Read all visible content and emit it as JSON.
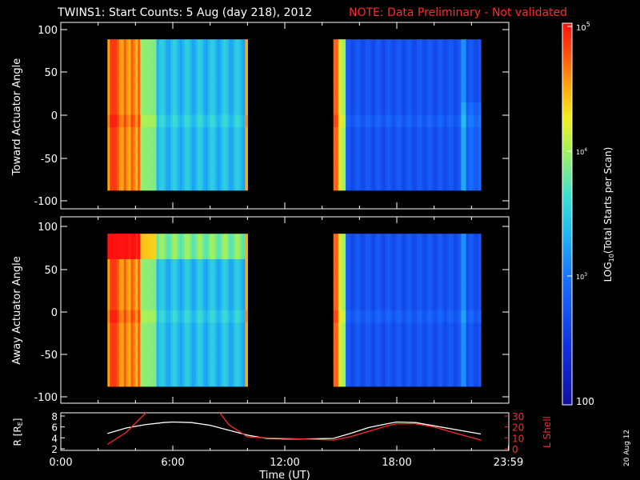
{
  "title": {
    "main": "TWINS1: Start Counts:  5 Aug (day 218), 2012",
    "note": "NOTE: Data Preliminary - Not validated"
  },
  "colorbar": {
    "label_prefix": "LOG",
    "label_sub": "10",
    "label_suffix": "(Total Starts per Scan)",
    "tick_top": "10",
    "tick_top_exp": "5",
    "tick_mid": "10",
    "tick_mid_exp": "4",
    "tick_low": "10",
    "tick_low_exp": "3",
    "tick_bottom": "100",
    "range": [
      100,
      100000
    ],
    "scale": "log"
  },
  "date_stamp": "20 Aug 12",
  "colors": {
    "background": "#000000",
    "note": "#ff2a2a",
    "lshell": "#ff2a2a",
    "radius": "#ffffff"
  },
  "chart_data": [
    {
      "type": "heatmap",
      "ylabel": "Toward Actuator Angle",
      "ylim": [
        -110,
        110
      ],
      "yticks": [
        "100",
        "50",
        "0",
        "-50",
        "-100"
      ],
      "xlim": [
        0,
        24
      ],
      "grid": false,
      "blocks": [
        {
          "t_start": 2.5,
          "t_end": 10.0,
          "angle_range": [
            -88,
            90
          ],
          "description_levels": [
            "high at 2.5-4.5h (~5e4)",
            "moderate ~3e3 later"
          ]
        },
        {
          "t_start": 14.6,
          "t_end": 22.5,
          "angle_range": [
            -88,
            90
          ],
          "description_levels": [
            "high at 14.6-15.2h (~5e4)",
            "low ~500 later"
          ]
        }
      ]
    },
    {
      "type": "heatmap",
      "ylabel": "Away Actuator Angle",
      "ylim": [
        -110,
        110
      ],
      "yticks": [
        "100",
        "50",
        "0",
        "-50",
        "-100"
      ],
      "xlim": [
        0,
        24
      ],
      "grid": false,
      "blocks": [
        {
          "t_start": 2.5,
          "t_end": 10.0,
          "angle_range": [
            -90,
            90
          ]
        },
        {
          "t_start": 14.6,
          "t_end": 22.5,
          "angle_range": [
            -90,
            90
          ]
        }
      ]
    },
    {
      "type": "line",
      "ylabel_left": "R [R",
      "ylabel_left_sub": "E",
      "ylabel_left_end": "]",
      "ylabel_right": "L Shell",
      "yticks_left": [
        "8",
        "6",
        "4",
        "2"
      ],
      "yticks_right": [
        "30",
        "20",
        "10",
        "0"
      ],
      "ylim_left": [
        2,
        8
      ],
      "ylim_right": [
        0,
        30
      ],
      "xlabel": "Time (UT)",
      "xticks": [
        "0:00",
        "6:00",
        "12:00",
        "18:00",
        "23:59"
      ],
      "xlim": [
        0,
        24
      ],
      "series": [
        {
          "axis": "left",
          "color": "#ffffff",
          "x": [
            2.5,
            3.5,
            4.5,
            5.5,
            6.0,
            7.0,
            8.0,
            9.0,
            10.0,
            11.0,
            12.0,
            13.0,
            14.6,
            15.5,
            16.5,
            17.5,
            18.0,
            19.0,
            20.0,
            21.0,
            22.5
          ],
          "y": [
            4.8,
            5.8,
            6.4,
            6.8,
            6.9,
            6.8,
            6.3,
            5.4,
            4.5,
            3.9,
            3.8,
            3.8,
            3.9,
            4.8,
            5.9,
            6.6,
            6.9,
            6.8,
            6.2,
            5.6,
            4.7
          ]
        },
        {
          "axis": "right",
          "color": "#ff2a2a",
          "x": [
            2.5,
            3.5,
            4.5,
            5.0,
            8.2,
            9.0,
            10.0,
            11.0,
            12.0,
            13.0,
            14.6,
            15.5,
            16.5,
            17.5,
            18.0,
            19.0,
            20.0,
            21.0,
            22.5
          ],
          "y": [
            4,
            15,
            32,
            40,
            40,
            22,
            11,
            10,
            9.5,
            9,
            8,
            11,
            16,
            21,
            23,
            23,
            20,
            15,
            8
          ]
        }
      ]
    }
  ]
}
